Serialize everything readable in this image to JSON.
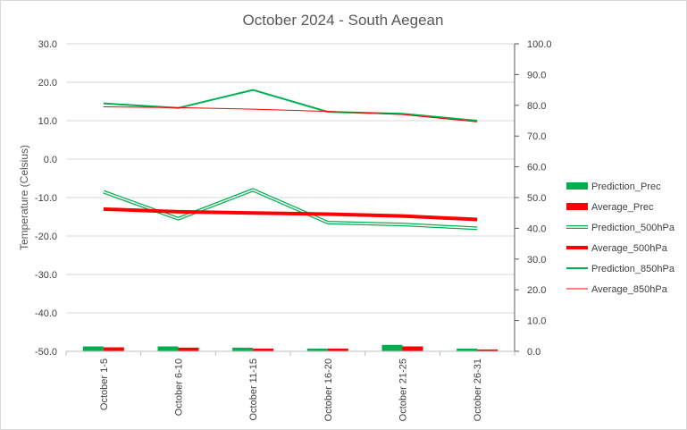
{
  "chart_data": {
    "type": "line",
    "title": "October 2024 - South Aegean",
    "ylabel": "Temperature  (Celsius)",
    "xlabel": "",
    "categories": [
      "October 1-5",
      "October 6-10",
      "October 11-15",
      "October 16-20",
      "October 21-25",
      "October 26-31"
    ],
    "y_left": {
      "min": -50,
      "max": 30,
      "step": 10,
      "tick_labels": [
        "-50.0",
        "-40.0",
        "-30.0",
        "-20.0",
        "-10.0",
        "0.0",
        "10.0",
        "20.0",
        "30.0"
      ]
    },
    "y_right": {
      "min": 0,
      "max": 100,
      "step": 10,
      "tick_labels": [
        "0.0",
        "10.0",
        "20.0",
        "30.0",
        "40.0",
        "50.0",
        "60.0",
        "70.0",
        "80.0",
        "90.0",
        "100.0"
      ]
    },
    "grid": "horizontal",
    "legend_position": "right",
    "series": [
      {
        "name": "Prediction_Prec",
        "kind": "bar",
        "axis": "right",
        "color": "#00b050",
        "values": [
          1.6,
          1.6,
          1.2,
          0.9,
          2.1,
          0.9
        ]
      },
      {
        "name": "Average_Prec",
        "kind": "bar",
        "axis": "right",
        "color": "#ff0000",
        "values": [
          1.3,
          1.2,
          0.9,
          0.9,
          1.6,
          0.6
        ]
      },
      {
        "name": "Prediction_500hPa",
        "kind": "line",
        "axis": "left",
        "color": "#00b050",
        "style": "double",
        "values": [
          -8.5,
          -15.5,
          -8.0,
          -16.5,
          -17.0,
          -18.0
        ]
      },
      {
        "name": "Average_500hPa",
        "kind": "line",
        "axis": "left",
        "color": "#ff0000",
        "style": "thick",
        "values": [
          -13.0,
          -13.7,
          -14.0,
          -14.3,
          -14.8,
          -15.7
        ]
      },
      {
        "name": "Prediction_850hPa",
        "kind": "line",
        "axis": "left",
        "color": "#00b050",
        "style": "solid",
        "values": [
          14.5,
          13.3,
          18.0,
          12.3,
          11.8,
          10.0
        ]
      },
      {
        "name": "Average_850hPa",
        "kind": "line",
        "axis": "left",
        "color": "#ff0000",
        "style": "thin",
        "values": [
          13.6,
          13.4,
          13.0,
          12.4,
          11.6,
          9.7
        ]
      }
    ]
  }
}
